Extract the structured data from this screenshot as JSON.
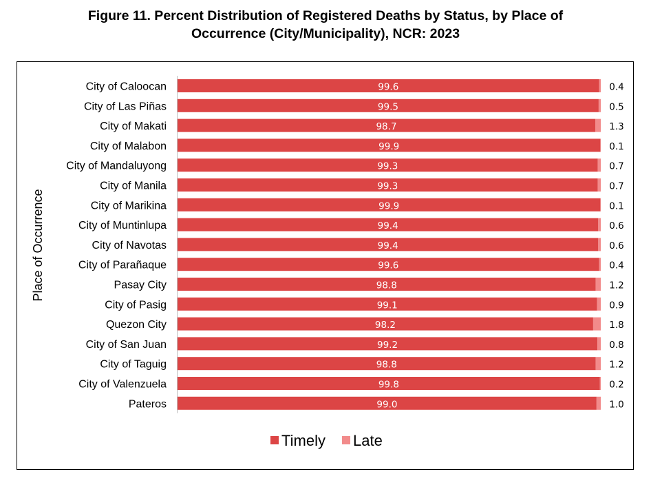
{
  "title_lines": [
    "Figure 11. Percent Distribution of Registered Deaths by Status, by Place of",
    "Occurrence (City/Municipality), NCR: 2023"
  ],
  "chart_data": {
    "type": "bar",
    "orientation": "horizontal",
    "stacked": true,
    "categories": [
      "City of Caloocan",
      "City of Las Piñas",
      "City of Makati",
      "City of Malabon",
      "City of Mandaluyong",
      "City of Manila",
      "City of Marikina",
      "City of Muntinlupa",
      "City of Navotas",
      "City of Parañaque",
      "Pasay City",
      "City of Pasig",
      "Quezon City",
      "City of San Juan",
      "City of Taguig",
      "City of Valenzuela",
      "Pateros"
    ],
    "series": [
      {
        "name": "Timely",
        "color": "#dc4545",
        "values": [
          99.6,
          99.5,
          98.7,
          99.9,
          99.3,
          99.3,
          99.9,
          99.4,
          99.4,
          99.6,
          98.8,
          99.1,
          98.2,
          99.2,
          98.8,
          99.8,
          99.0
        ],
        "labels": [
          "99.6",
          "99.5",
          "98.7",
          "99.9",
          "99.3",
          "99.3",
          "99.9",
          "99.4",
          "99.4",
          "99.6",
          "98.8",
          "99.1",
          "98.2",
          "99.2",
          "98.8",
          "99.8",
          "99.0"
        ]
      },
      {
        "name": "Late",
        "color": "#f28b8b",
        "values": [
          0.4,
          0.5,
          1.3,
          0.1,
          0.7,
          0.7,
          0.1,
          0.6,
          0.6,
          0.4,
          1.2,
          0.9,
          1.8,
          0.8,
          1.2,
          0.2,
          1.0
        ],
        "labels": [
          "0.4",
          "0.5",
          "1.3",
          "0.1",
          "0.7",
          "0.7",
          "0.1",
          "0.6",
          "0.6",
          "0.4",
          "1.2",
          "0.9",
          "1.8",
          "0.8",
          "1.2",
          "0.2",
          "1.0"
        ]
      }
    ],
    "ylabel": "Place of Occurrence",
    "xlabel": "",
    "xlim": [
      0,
      100
    ],
    "grid": false,
    "legend": "bottom"
  }
}
